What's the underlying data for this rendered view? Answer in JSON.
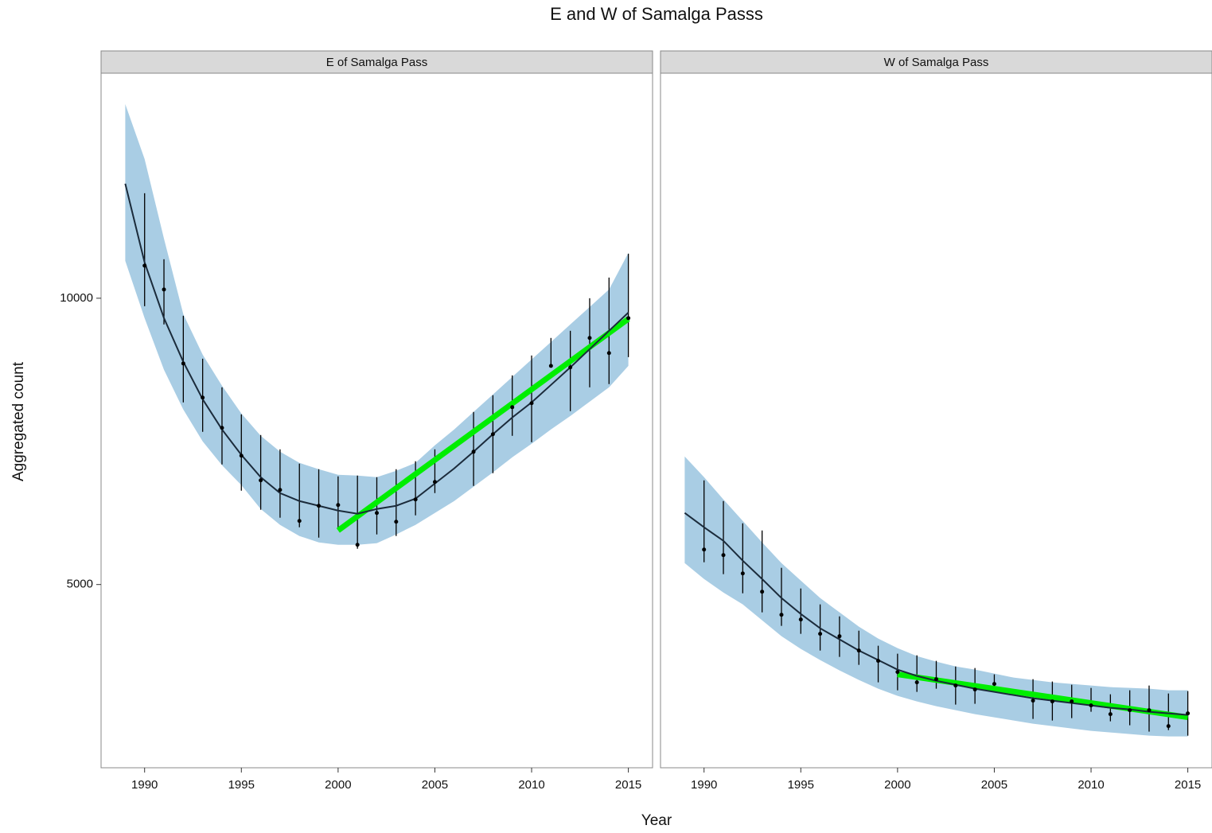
{
  "title": "E and W of Samalga Passs",
  "x_label": "Year",
  "y_label": "Aggregated count",
  "chart_data": [
    {
      "type": "line",
      "panel_title": "E of Samalga Pass",
      "xlim": [
        1987.75,
        2016.25
      ],
      "ylim": [
        1800,
        13930
      ],
      "xticks": [
        1990,
        1995,
        2000,
        2005,
        2010,
        2015
      ],
      "yticks": [
        5000,
        10000
      ],
      "band_color": "#a9cde4",
      "line_color": "#1b2b3b",
      "trend_color": "#00ee00",
      "point_color": "#000000",
      "points": {
        "x": [
          1990,
          1991,
          1992,
          1993,
          1994,
          1995,
          1996,
          1997,
          1998,
          1999,
          2000,
          2001,
          2002,
          2003,
          2004,
          2005,
          2007,
          2008,
          2009,
          2010,
          2011,
          2012,
          2013,
          2014,
          2015
        ],
        "values": [
          10569,
          10153,
          8861,
          8264,
          7736,
          7250,
          6819,
          6653,
          6111,
          6375,
          6389,
          5694,
          6250,
          6097,
          6486,
          6792,
          7319,
          7625,
          8097,
          8167,
          8819,
          8792,
          9306,
          9042,
          9653
        ],
        "lower": [
          9861,
          9542,
          8181,
          7667,
          7097,
          6639,
          6306,
          6167,
          6000,
          5819,
          5958,
          5625,
          5875,
          5847,
          6208,
          6597,
          6722,
          6944,
          7597,
          7486,
          8806,
          8028,
          8444,
          8500,
          8972
        ],
        "upper": [
          11833,
          10681,
          9694,
          8944,
          8444,
          7972,
          7611,
          7361,
          7111,
          7014,
          6889,
          6903,
          6875,
          7014,
          7153,
          7361,
          8014,
          8306,
          8653,
          9000,
          9306,
          9431,
          10000,
          10361,
          10778
        ]
      },
      "fit": {
        "x": [
          1989,
          1990,
          1991,
          1992,
          1993,
          1994,
          1995,
          1996,
          1997,
          1998,
          1999,
          2000,
          2001,
          2002,
          2003,
          2004,
          2005,
          2006,
          2007,
          2008,
          2009,
          2010,
          2011,
          2012,
          2013,
          2014,
          2015
        ],
        "values": [
          12000,
          10625,
          9653,
          8889,
          8236,
          7708,
          7264,
          6875,
          6597,
          6458,
          6375,
          6292,
          6236,
          6319,
          6375,
          6500,
          6764,
          7028,
          7319,
          7625,
          7917,
          8181,
          8486,
          8792,
          9111,
          9431,
          9750
        ],
        "band_lower": [
          10653,
          9653,
          8750,
          8056,
          7500,
          7083,
          6736,
          6319,
          6042,
          5847,
          5736,
          5694,
          5694,
          5722,
          5875,
          6042,
          6250,
          6458,
          6708,
          6958,
          7222,
          7458,
          7708,
          7944,
          8194,
          8444,
          8819
        ],
        "band_upper": [
          13389,
          12431,
          11042,
          9722,
          9014,
          8472,
          7986,
          7597,
          7319,
          7125,
          7014,
          6917,
          6903,
          6875,
          6986,
          7125,
          7431,
          7708,
          8014,
          8319,
          8625,
          8931,
          9236,
          9542,
          9847,
          10153,
          10792
        ]
      },
      "trend": {
        "x": [
          2000,
          2015
        ],
        "values": [
          5944,
          9639
        ]
      }
    },
    {
      "type": "line",
      "panel_title": "W of Samalga Pass",
      "xlim": [
        1987.75,
        2016.25
      ],
      "ylim": [
        1800,
        13930
      ],
      "xticks": [
        1990,
        1995,
        2000,
        2005,
        2010,
        2015
      ],
      "band_color": "#a9cde4",
      "line_color": "#1b2b3b",
      "trend_color": "#00ee00",
      "point_color": "#000000",
      "points": {
        "x": [
          1990,
          1991,
          1992,
          1993,
          1994,
          1995,
          1996,
          1997,
          1998,
          1999,
          2000,
          2001,
          2002,
          2003,
          2004,
          2005,
          2007,
          2008,
          2009,
          2010,
          2011,
          2012,
          2013,
          2014,
          2015
        ],
        "values": [
          5611,
          5514,
          5194,
          4875,
          4472,
          4389,
          4139,
          4097,
          3847,
          3667,
          3472,
          3292,
          3347,
          3236,
          3167,
          3264,
          2972,
          2958,
          2958,
          2889,
          2736,
          2806,
          2806,
          2528,
          2750
        ],
        "lower": [
          5389,
          5181,
          4847,
          4514,
          4278,
          4139,
          3847,
          3736,
          3597,
          3292,
          3153,
          3125,
          3181,
          2903,
          2917,
          3139,
          2653,
          2625,
          2667,
          2778,
          2611,
          2542,
          2431,
          2458,
          2361
        ],
        "upper": [
          6819,
          6458,
          6069,
          5944,
          5292,
          4931,
          4653,
          4444,
          4194,
          3931,
          3792,
          3764,
          3667,
          3569,
          3542,
          3431,
          3347,
          3306,
          3250,
          3194,
          3083,
          3153,
          3236,
          3097,
          3139
        ]
      },
      "fit": {
        "x": [
          1989,
          1990,
          1991,
          1992,
          1993,
          1994,
          1995,
          1996,
          1997,
          1998,
          1999,
          2000,
          2001,
          2002,
          2003,
          2004,
          2005,
          2006,
          2007,
          2008,
          2009,
          2010,
          2011,
          2012,
          2013,
          2014,
          2015
        ],
        "values": [
          6250,
          6000,
          5764,
          5417,
          5097,
          4764,
          4486,
          4236,
          4042,
          3847,
          3681,
          3514,
          3403,
          3319,
          3250,
          3181,
          3125,
          3069,
          3014,
          2972,
          2931,
          2889,
          2847,
          2819,
          2778,
          2750,
          2722
        ],
        "band_lower": [
          5375,
          5097,
          4861,
          4653,
          4375,
          4097,
          3875,
          3681,
          3500,
          3333,
          3181,
          3056,
          2958,
          2875,
          2806,
          2736,
          2681,
          2625,
          2569,
          2528,
          2486,
          2444,
          2417,
          2389,
          2361,
          2347,
          2347
        ],
        "band_upper": [
          7236,
          6875,
          6486,
          6111,
          5736,
          5375,
          5069,
          4764,
          4514,
          4264,
          4056,
          3889,
          3750,
          3653,
          3569,
          3514,
          3444,
          3375,
          3333,
          3292,
          3264,
          3236,
          3208,
          3194,
          3181,
          3153,
          3153
        ]
      },
      "trend": {
        "x": [
          2000,
          2015
        ],
        "values": [
          3431,
          2681
        ]
      }
    }
  ]
}
